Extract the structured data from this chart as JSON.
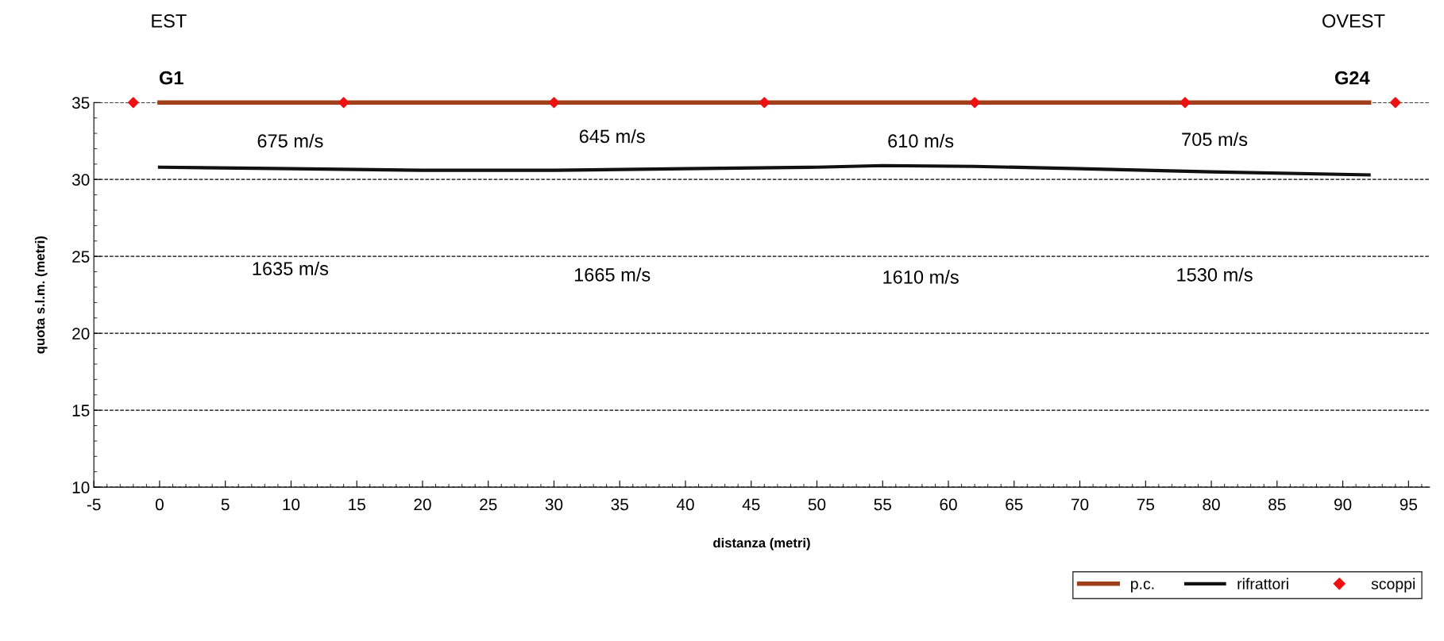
{
  "chart_data": {
    "type": "line",
    "xlabel": "distanza (metri)",
    "ylabel": "quota s.l.m. (metri)",
    "xlim": [
      -5,
      96.6
    ],
    "ylim": [
      10,
      35
    ],
    "xticks": [
      -5,
      0,
      5,
      10,
      15,
      20,
      25,
      30,
      35,
      40,
      45,
      50,
      55,
      60,
      65,
      70,
      75,
      80,
      85,
      90,
      95
    ],
    "yticks": [
      10,
      15,
      20,
      25,
      30,
      35
    ],
    "grid": "y",
    "line_style": "solid",
    "legend": "bottom right",
    "series": [
      {
        "name": "p.c.",
        "color": "#a0401a",
        "marker": "none",
        "x": [
          0,
          92
        ],
        "values": [
          35,
          35
        ]
      },
      {
        "name": "rifrattori",
        "color": "#111111",
        "marker": "none",
        "x": [
          0,
          10,
          20,
          30,
          40,
          50,
          55,
          62,
          70,
          80,
          92
        ],
        "values": [
          30.8,
          30.7,
          30.6,
          30.6,
          30.7,
          30.8,
          30.9,
          30.85,
          30.7,
          30.5,
          30.3
        ]
      },
      {
        "name": "scoppi",
        "type": "scatter",
        "color": "#ee1111",
        "marker": "diamond",
        "x": [
          -2,
          14,
          30,
          46,
          62,
          78,
          94
        ],
        "values": [
          35,
          35,
          35,
          35,
          35,
          35,
          35
        ]
      }
    ],
    "annotations": [
      "EST",
      "OVEST",
      "G1",
      "G24",
      "675 m/s",
      "645 m/s",
      "610 m/s",
      "705 m/s",
      "1635 m/s",
      "1665 m/s",
      "1610 m/s",
      "1530 m/s"
    ]
  }
}
